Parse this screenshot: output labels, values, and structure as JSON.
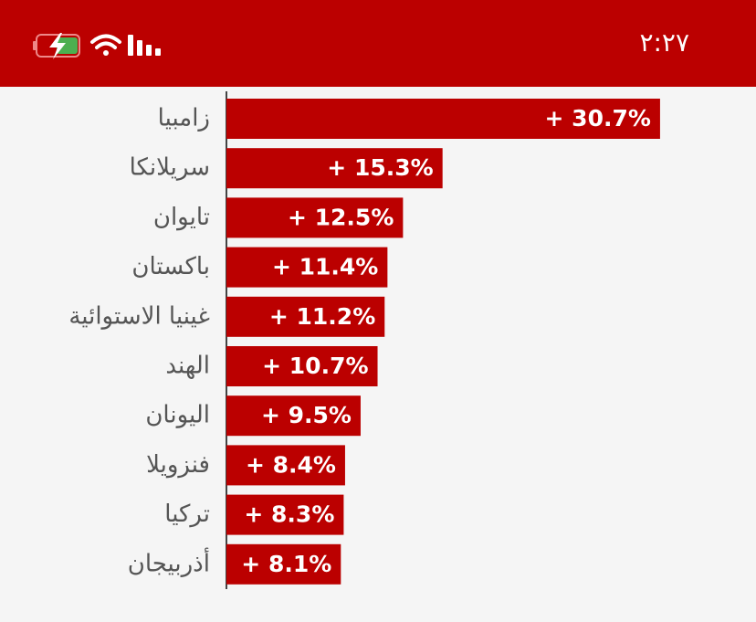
{
  "status_bar": {
    "time": "٢:٢٧"
  },
  "chart_data": {
    "type": "bar",
    "orientation": "horizontal",
    "color": "#bb0000",
    "categories": [
      "زامبيا",
      "سريلانكا",
      "تايوان",
      "باكستان",
      "غينيا الاستوائية",
      "الهند",
      "اليونان",
      "فنزويلا",
      "تركيا",
      "أذربيجان"
    ],
    "values": [
      30.7,
      15.3,
      12.5,
      11.4,
      11.2,
      10.7,
      9.5,
      8.4,
      8.3,
      8.1
    ],
    "value_labels": [
      "+ 30.7%",
      "+ 15.3%",
      "+ 12.5%",
      "+ 11.4%",
      "+ 11.2%",
      "+ 10.7%",
      "+ 9.5%",
      "+ 8.4%",
      "+ 8.3%",
      "+ 8.1%"
    ]
  }
}
